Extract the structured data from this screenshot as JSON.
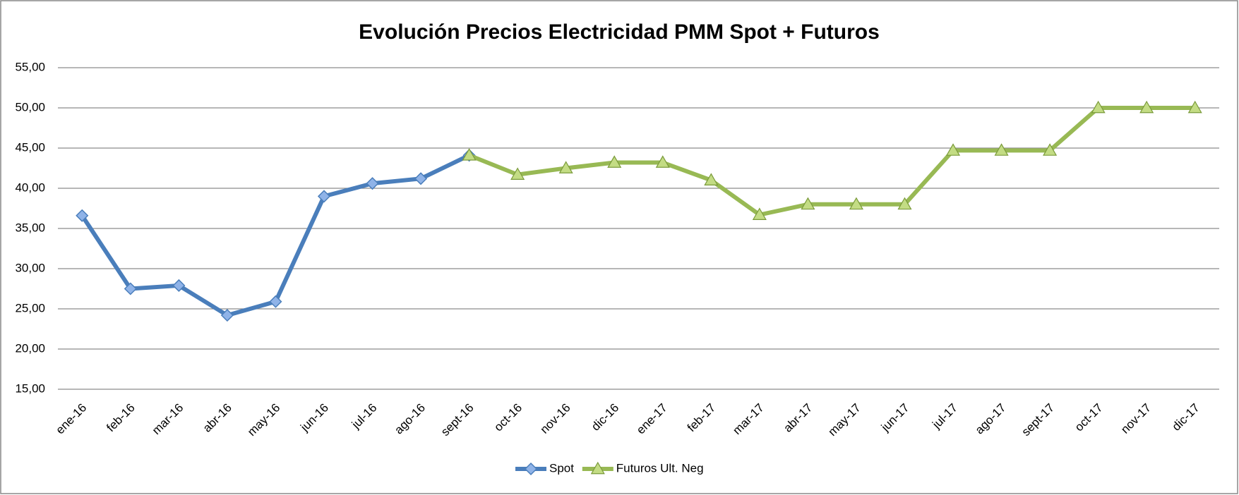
{
  "chart_data": {
    "type": "line",
    "title": "Evolución Precios Electricidad PMM Spot + Futuros",
    "categories": [
      "ene-16",
      "feb-16",
      "mar-16",
      "abr-16",
      "may-16",
      "jun-16",
      "jul-16",
      "ago-16",
      "sept-16",
      "oct-16",
      "nov-16",
      "dic-16",
      "ene-17",
      "feb-17",
      "mar-17",
      "abr-17",
      "may-17",
      "jun-17",
      "jul-17",
      "ago-17",
      "sept-17",
      "oct-17",
      "nov-17",
      "dic-17"
    ],
    "series": [
      {
        "name": "Spot",
        "color": "#4a7ebb",
        "marker": "diamond",
        "values": [
          36.6,
          27.5,
          27.9,
          24.2,
          25.9,
          39.0,
          40.6,
          41.2,
          44.1,
          null,
          null,
          null,
          null,
          null,
          null,
          null,
          null,
          null,
          null,
          null,
          null,
          null,
          null,
          null
        ]
      },
      {
        "name": "Futuros Ult. Neg",
        "color": "#98b954",
        "marker": "triangle",
        "values": [
          null,
          null,
          null,
          null,
          null,
          null,
          null,
          null,
          44.1,
          41.7,
          42.5,
          43.2,
          43.2,
          41.0,
          36.7,
          38.0,
          38.0,
          38.0,
          44.7,
          44.7,
          44.7,
          50.0,
          50.0,
          50.0
        ]
      }
    ],
    "ylim": [
      15,
      55
    ],
    "yticks": [
      {
        "value": 15,
        "label": "15,00"
      },
      {
        "value": 20,
        "label": "20,00"
      },
      {
        "value": 25,
        "label": "25,00"
      },
      {
        "value": 30,
        "label": "30,00"
      },
      {
        "value": 35,
        "label": "35,00"
      },
      {
        "value": 40,
        "label": "40,00"
      },
      {
        "value": 45,
        "label": "45,00"
      },
      {
        "value": 50,
        "label": "50,00"
      },
      {
        "value": 55,
        "label": "55,00"
      }
    ],
    "grid": true,
    "legend": "bottom"
  }
}
